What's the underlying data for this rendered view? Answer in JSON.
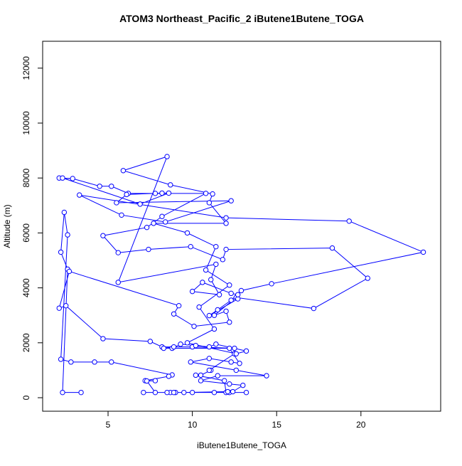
{
  "chart_data": {
    "type": "scatter-line",
    "title": "ATOM3 Northeast_Pacific_2 iButene1Butene_TOGA",
    "x_label": "iButene1Butene_TOGA",
    "y_label": "Altitude (m)",
    "color": "#0000ff",
    "xlim": [
      1.12,
      24.73
    ],
    "ylim": [
      -492,
      12979
    ],
    "xticks": [
      5,
      10,
      15,
      20
    ],
    "yticks": [
      0,
      2000,
      4000,
      6000,
      8000,
      10000,
      12000
    ],
    "x": [
      3.4,
      2.3,
      2.6,
      2.2,
      2.4,
      2.6,
      2.2,
      2.8,
      4.2,
      5.2,
      8.8,
      8.6,
      7.2,
      7.8,
      7.3,
      7.8,
      7.1,
      8.7,
      9.0,
      10.0,
      11.3,
      12.2,
      13.2,
      12.0,
      11.9,
      10.2,
      10.5,
      11.1,
      11.0,
      12.5,
      12.5,
      10.0,
      8.2,
      7.5,
      4.7,
      2.5,
      2.1,
      2.7,
      9.2,
      8.9,
      10.1,
      12.2,
      12.0,
      11.3,
      12.6,
      17.2,
      20.4,
      18.3,
      12.0,
      11.8,
      9.9,
      7.4,
      5.6,
      4.7,
      7.3,
      8.2,
      10.8,
      7.8,
      6.2,
      5.2,
      4.5,
      2.9,
      2.1,
      2.3,
      6.9,
      8.6,
      8.2,
      6.1,
      5.5,
      12.3,
      8.4,
      5.8,
      3.3,
      12.0,
      19.3,
      23.7,
      14.7,
      12.9,
      12.3,
      11.5,
      11.0,
      12.7,
      12.7,
      12.3,
      10.6,
      10.0,
      11.6,
      11.1,
      11.4,
      5.6,
      8.5,
      5.9,
      8.7,
      11.2,
      11.0,
      12.0,
      7.7,
      9.7,
      11.4,
      10.8,
      12.2,
      10.4,
      11.3,
      9.7,
      12.6,
      13.2,
      11.4,
      11.0,
      10.2,
      9.3,
      8.8,
      8.9,
      8.3,
      12.2,
      12.8,
      12.3,
      11.0,
      9.9,
      12.6,
      14.4,
      11.5,
      10.5,
      12.2,
      13.0,
      12.4,
      12.1,
      9.5,
      8.9,
      8.5
    ],
    "y": [
      190,
      190,
      4680,
      5300,
      6750,
      5930,
      1400,
      1300,
      1300,
      1300,
      830,
      780,
      620,
      620,
      610,
      190,
      190,
      190,
      190,
      190,
      190,
      190,
      190,
      190,
      620,
      820,
      820,
      1000,
      1000,
      1600,
      1800,
      1850,
      1850,
      2050,
      2150,
      3350,
      3260,
      4600,
      3350,
      3050,
      2600,
      2750,
      3150,
      3000,
      3650,
      3250,
      4350,
      5450,
      5400,
      5030,
      5500,
      5400,
      5280,
      5900,
      6200,
      6600,
      7440,
      7440,
      7440,
      7700,
      7700,
      7980,
      8000,
      8000,
      7050,
      7450,
      7450,
      7400,
      7100,
      7170,
      6400,
      6650,
      7380,
      6550,
      6430,
      5300,
      4150,
      3900,
      3550,
      3200,
      2990,
      3600,
      3750,
      3800,
      4200,
      3870,
      3750,
      4300,
      4860,
      4200,
      8780,
      8270,
      7750,
      7420,
      7100,
      6350,
      6350,
      6000,
      5500,
      4650,
      4100,
      3300,
      2500,
      2000,
      1600,
      1700,
      1950,
      1850,
      1900,
      1950,
      1800,
      1850,
      1800,
      1800,
      1250,
      1300,
      1430,
      1300,
      1000,
      800,
      800,
      620,
      500,
      450,
      220,
      220,
      190,
      190,
      190
    ]
  }
}
